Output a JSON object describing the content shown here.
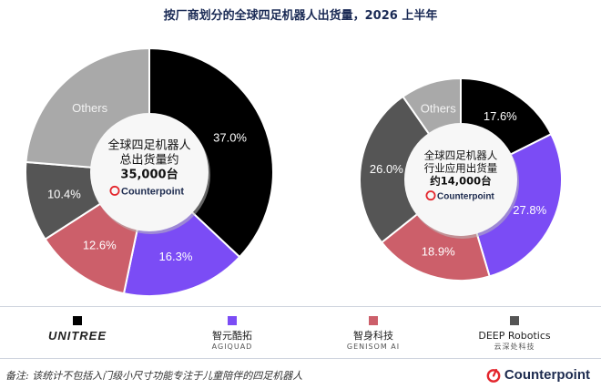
{
  "title": "按厂商划分的全球四足机器人出货量，2026 上半年",
  "chart_data": [
    {
      "type": "pie",
      "title": "",
      "center_text": [
        "全球四足机器人",
        "总出货量约",
        "35,000台"
      ],
      "center_logo": "Counterpoint",
      "slices": [
        {
          "label": "",
          "value": 37.0,
          "display": "37.0%",
          "color": "#000000",
          "text_color": "#ffffff"
        },
        {
          "label": "",
          "value": 16.3,
          "display": "16.3%",
          "color": "#7b4cf5",
          "text_color": "#ffffff"
        },
        {
          "label": "",
          "value": 12.6,
          "display": "12.6%",
          "color": "#cc5f6a",
          "text_color": "#ffffff"
        },
        {
          "label": "",
          "value": 10.4,
          "display": "10.4%",
          "color": "#555555",
          "text_color": "#ffffff"
        },
        {
          "label": "Others",
          "value": 23.7,
          "display": "Others",
          "color": "#a9a9a9",
          "text_color": "#f2f2f2"
        }
      ]
    },
    {
      "type": "pie",
      "title": "",
      "center_text": [
        "全球四足机器人",
        "行业应用出货量",
        "约14,000台"
      ],
      "center_logo": "Counterpoint",
      "slices": [
        {
          "label": "",
          "value": 17.6,
          "display": "17.6%",
          "color": "#000000",
          "text_color": "#ffffff"
        },
        {
          "label": "",
          "value": 27.8,
          "display": "27.8%",
          "color": "#7b4cf5",
          "text_color": "#ffffff"
        },
        {
          "label": "",
          "value": 18.9,
          "display": "18.9%",
          "color": "#cc5f6a",
          "text_color": "#ffffff"
        },
        {
          "label": "",
          "value": 26.0,
          "display": "26.0%",
          "color": "#555555",
          "text_color": "#ffffff"
        },
        {
          "label": "Others",
          "value": 9.7,
          "display": "Others",
          "color": "#a9a9a9",
          "text_color": "#f2f2f2"
        }
      ]
    }
  ],
  "legend": [
    {
      "name": "UNITREE",
      "sub": "",
      "color": "#000000"
    },
    {
      "name": "智元酷拓",
      "sub": "AGIQUAD",
      "color": "#7b4cf5"
    },
    {
      "name": "智身科技",
      "sub": "GENISOM AI",
      "color": "#cc5f6a"
    },
    {
      "name": "DEEP Robotics",
      "sub": "云深处科技",
      "color": "#555555"
    }
  ],
  "note": "备注: 该统计不包括入门级小尺寸功能专注于儿童陪伴的四足机器人",
  "footer_logo": "Counterpoint"
}
